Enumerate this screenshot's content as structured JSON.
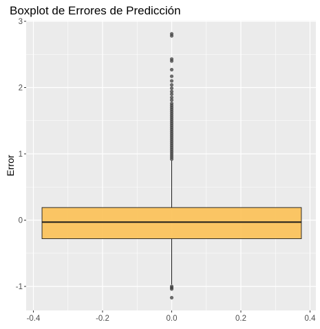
{
  "chart_data": {
    "type": "boxplot",
    "title": "Boxplot de Errores de Predicción",
    "xlabel": "",
    "ylabel": "Error",
    "xlim": [
      -0.4,
      0.4
    ],
    "ylim": [
      -1.3,
      3.0
    ],
    "x_ticks": [
      "-0.4",
      "-0.2",
      "0.0",
      "0.2",
      "0.4"
    ],
    "y_ticks": [
      "-1",
      "0",
      "1",
      "2",
      "3"
    ],
    "grid": true,
    "box": {
      "x_left": -0.375,
      "x_right": 0.375,
      "q1": -0.28,
      "median": -0.03,
      "q3": 0.19,
      "whisker_low": -0.97,
      "whisker_high": 0.9
    },
    "outliers": [
      -1.0,
      -1.02,
      -1.04,
      -1.17,
      0.92,
      0.95,
      0.98,
      1.01,
      1.04,
      1.07,
      1.1,
      1.13,
      1.16,
      1.19,
      1.22,
      1.25,
      1.28,
      1.31,
      1.34,
      1.37,
      1.4,
      1.43,
      1.46,
      1.49,
      1.52,
      1.55,
      1.58,
      1.61,
      1.64,
      1.67,
      1.7,
      1.73,
      1.76,
      1.81,
      1.85,
      1.9,
      1.94,
      1.99,
      2.04,
      2.1,
      2.17,
      2.27,
      2.4,
      2.43,
      2.78,
      2.81
    ],
    "colors": {
      "box_fill": "#fbc35d",
      "box_stroke": "#1a1a1a",
      "outlier": "#3f3f3f",
      "panel_bg": "#ebebeb",
      "grid": "#ffffff"
    }
  }
}
